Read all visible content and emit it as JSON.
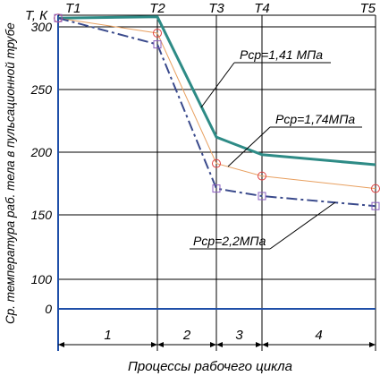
{
  "chart_data": {
    "type": "line",
    "ylabel": "Ср. температура раб. тела в пульсационной трубе",
    "yunit": "Т, К",
    "xlabel": "Процессы рабочего цикла",
    "y_ticks": [
      "0",
      "100",
      "150",
      "200",
      "250",
      "300"
    ],
    "x_points": [
      "T1",
      "T2",
      "T3",
      "T4",
      "T5"
    ],
    "process_labels": [
      "1",
      "2",
      "3",
      "4"
    ],
    "series": [
      {
        "name": "Pcp=1,41 МПа",
        "values": [
          307,
          308,
          212,
          198,
          190
        ],
        "color": "#2e8b86",
        "style": "solid",
        "marker": "none"
      },
      {
        "name": "Pcp=1,74МПа",
        "values": [
          307,
          295,
          191,
          181,
          171
        ],
        "color": "#e8a060",
        "style": "solid-thin",
        "marker": "circle"
      },
      {
        "name": "Pcp=2,2МПа",
        "values": [
          307,
          286,
          171,
          165,
          157
        ],
        "color": "#3a4a8c",
        "style": "dashdot",
        "marker": "square"
      }
    ]
  }
}
